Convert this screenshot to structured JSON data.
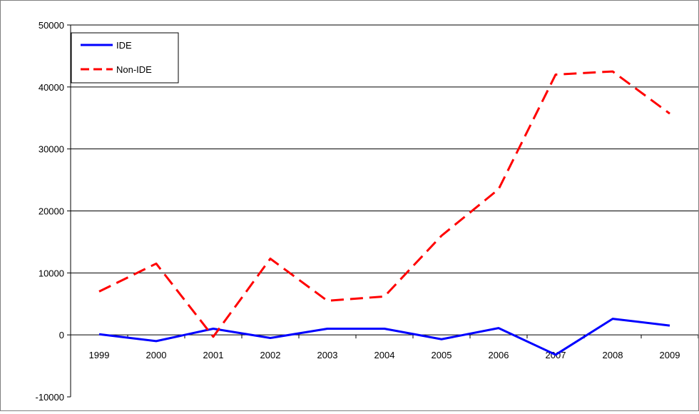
{
  "chart_data": {
    "type": "line",
    "title": "",
    "xlabel": "",
    "ylabel": "",
    "x": [
      "1999",
      "2000",
      "2001",
      "2002",
      "2003",
      "2004",
      "2005",
      "2006",
      "2007",
      "2008",
      "2009"
    ],
    "ylim": [
      -10000,
      50000
    ],
    "yticks": [
      -10000,
      0,
      10000,
      20000,
      30000,
      40000,
      50000
    ],
    "ytick_labels": [
      "-10000",
      "0",
      "10000",
      "20000",
      "30000",
      "40000",
      "50000"
    ],
    "grid": true,
    "legend_position": "top-left",
    "series": [
      {
        "name": "IDE",
        "values": [
          100,
          -1000,
          1000,
          -500,
          1000,
          1000,
          -700,
          1100,
          -3200,
          2600,
          1500
        ],
        "color": "#0000ff",
        "style": "solid"
      },
      {
        "name": "Non-IDE",
        "values": [
          7000,
          11500,
          -300,
          12300,
          5500,
          6200,
          16000,
          23500,
          42000,
          42500,
          35700
        ],
        "color": "#ff0000",
        "style": "dashed"
      }
    ]
  }
}
